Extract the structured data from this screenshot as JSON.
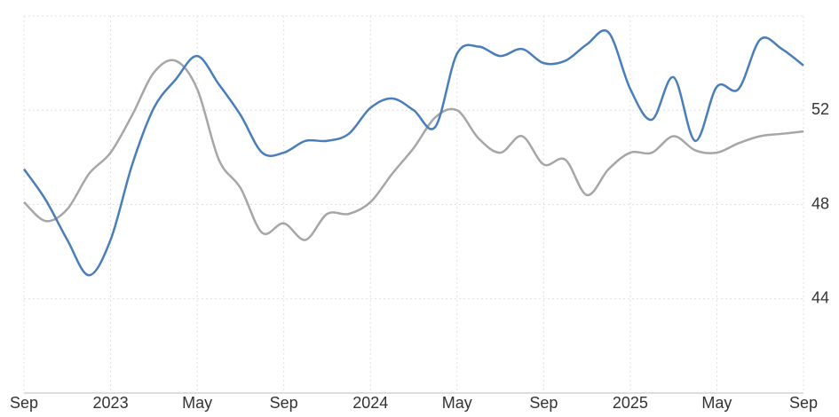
{
  "chart_data": {
    "type": "line",
    "categories": [
      "Sep",
      null,
      null,
      null,
      "2023",
      null,
      null,
      null,
      "May",
      null,
      null,
      null,
      "Sep",
      null,
      null,
      null,
      "2024",
      null,
      null,
      null,
      "May",
      null,
      null,
      null,
      "Sep",
      null,
      null,
      null,
      "2025",
      null,
      null,
      null,
      "May",
      null,
      null,
      null,
      "Sep"
    ],
    "series": [
      {
        "color": "#4a7ebb",
        "values": [
          49.5,
          48.2,
          46.5,
          45.0,
          46.5,
          49.7,
          52.1,
          53.3,
          54.3,
          53.1,
          51.8,
          50.2,
          50.2,
          50.7,
          50.7,
          51.0,
          52.1,
          52.5,
          52.0,
          51.3,
          54.4,
          54.7,
          54.3,
          54.6,
          54.0,
          54.1,
          54.8,
          55.3,
          52.9,
          51.6,
          53.4,
          50.7,
          53.0,
          52.9,
          55.0,
          54.6,
          53.9
        ]
      },
      {
        "color": "#a6a6a6",
        "values": [
          48.1,
          47.3,
          47.8,
          49.3,
          50.2,
          51.8,
          53.6,
          54.1,
          52.9,
          49.9,
          48.7,
          46.8,
          47.2,
          46.5,
          47.6,
          47.6,
          48.1,
          49.3,
          50.4,
          51.7,
          52.0,
          50.8,
          50.2,
          50.9,
          49.7,
          49.9,
          48.4,
          49.5,
          50.2,
          50.2,
          50.9,
          50.3,
          50.2,
          50.6,
          50.9,
          51.0,
          51.1
        ]
      }
    ],
    "ylim": [
      40,
      56
    ],
    "yticks": [
      44,
      48,
      52
    ],
    "grid": true
  }
}
